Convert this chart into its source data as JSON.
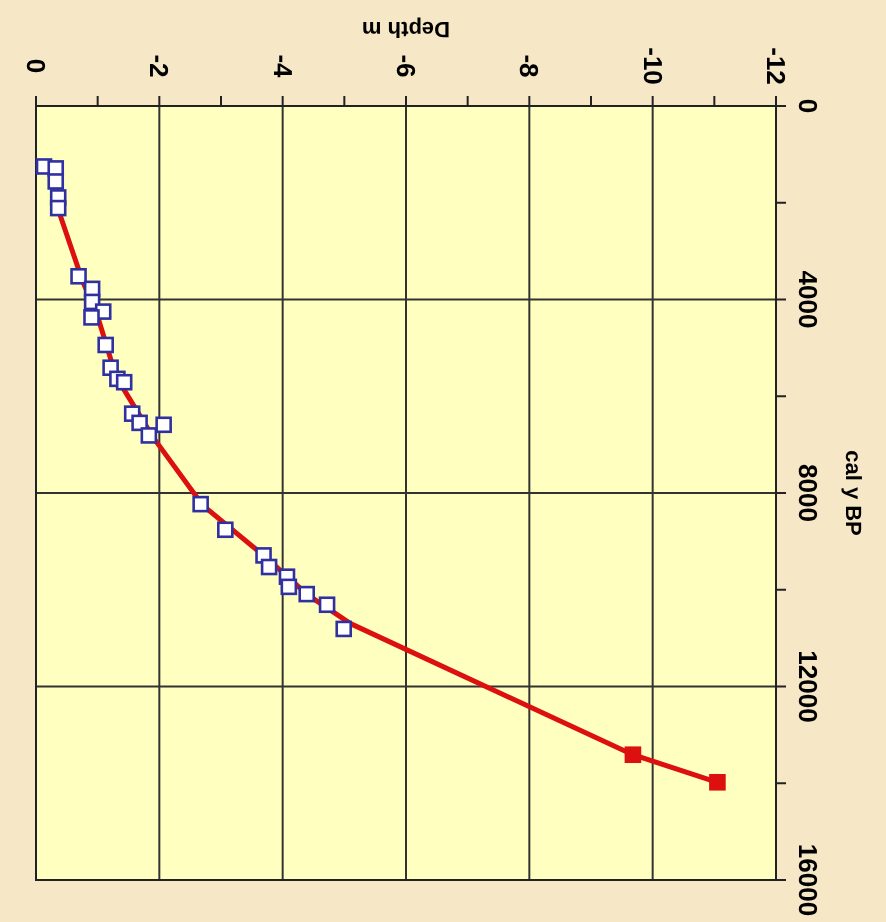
{
  "chart_data": {
    "type": "scatter",
    "xlabel": "Depth m",
    "ylabel": "cal y BP",
    "xlim": [
      0,
      -12
    ],
    "xticks": [
      0,
      {
        "value": -1,
        "label": null
      },
      -2,
      {
        "value": -3,
        "label": null
      },
      -4,
      {
        "value": -5,
        "label": null
      },
      -6,
      {
        "value": -7,
        "label": null
      },
      -8,
      {
        "value": -9,
        "label": null
      },
      -10,
      {
        "value": -11,
        "label": null
      },
      -12
    ],
    "ylim": [
      16000,
      0
    ],
    "yticks": [
      0,
      {
        "value": 2000,
        "label": null
      },
      4000,
      {
        "value": 6000,
        "label": null
      },
      8000,
      {
        "value": 10000,
        "label": null
      },
      12000,
      {
        "value": 14000,
        "label": null
      },
      16000
    ],
    "grid": true,
    "series": [
      {
        "color": "#3030a0",
        "marker": "square",
        "x": [
          -0.13,
          -0.32,
          -0.32,
          -0.36,
          -0.36,
          -0.69,
          -0.91,
          -0.91,
          -1.09,
          -0.9,
          -1.13,
          -1.21,
          -1.32,
          -1.43,
          -1.56,
          -1.68,
          -1.83,
          -2.07,
          -2.67,
          -3.07,
          -3.69,
          -3.78,
          -4.07,
          -4.1,
          -4.39,
          -4.72,
          -4.99
        ],
        "values": [
          1250,
          1290,
          1560,
          1890,
          2110,
          3520,
          3780,
          4050,
          4250,
          4370,
          4940,
          5410,
          5640,
          5710,
          6360,
          6550,
          6810,
          6590,
          8230,
          8760,
          9290,
          9530,
          9730,
          9940,
          10090,
          10310,
          10810
        ]
      },
      {
        "type": "line",
        "color": "#dd1010",
        "marker": "none",
        "line_style": "solid",
        "x": [
          -0.36,
          -0.75,
          -1.0,
          -1.3,
          -1.9,
          -2.7,
          -3.7,
          -4.4,
          -5.1,
          -9.68,
          -11.05
        ],
        "values": [
          2140,
          3600,
          4350,
          5600,
          6850,
          8250,
          9300,
          10100,
          10700,
          13410,
          13980
        ]
      },
      {
        "color": "#dd1010",
        "marker": "square",
        "x": [
          -9.68,
          -11.05
        ],
        "values": [
          13410,
          13980
        ]
      }
    ]
  }
}
